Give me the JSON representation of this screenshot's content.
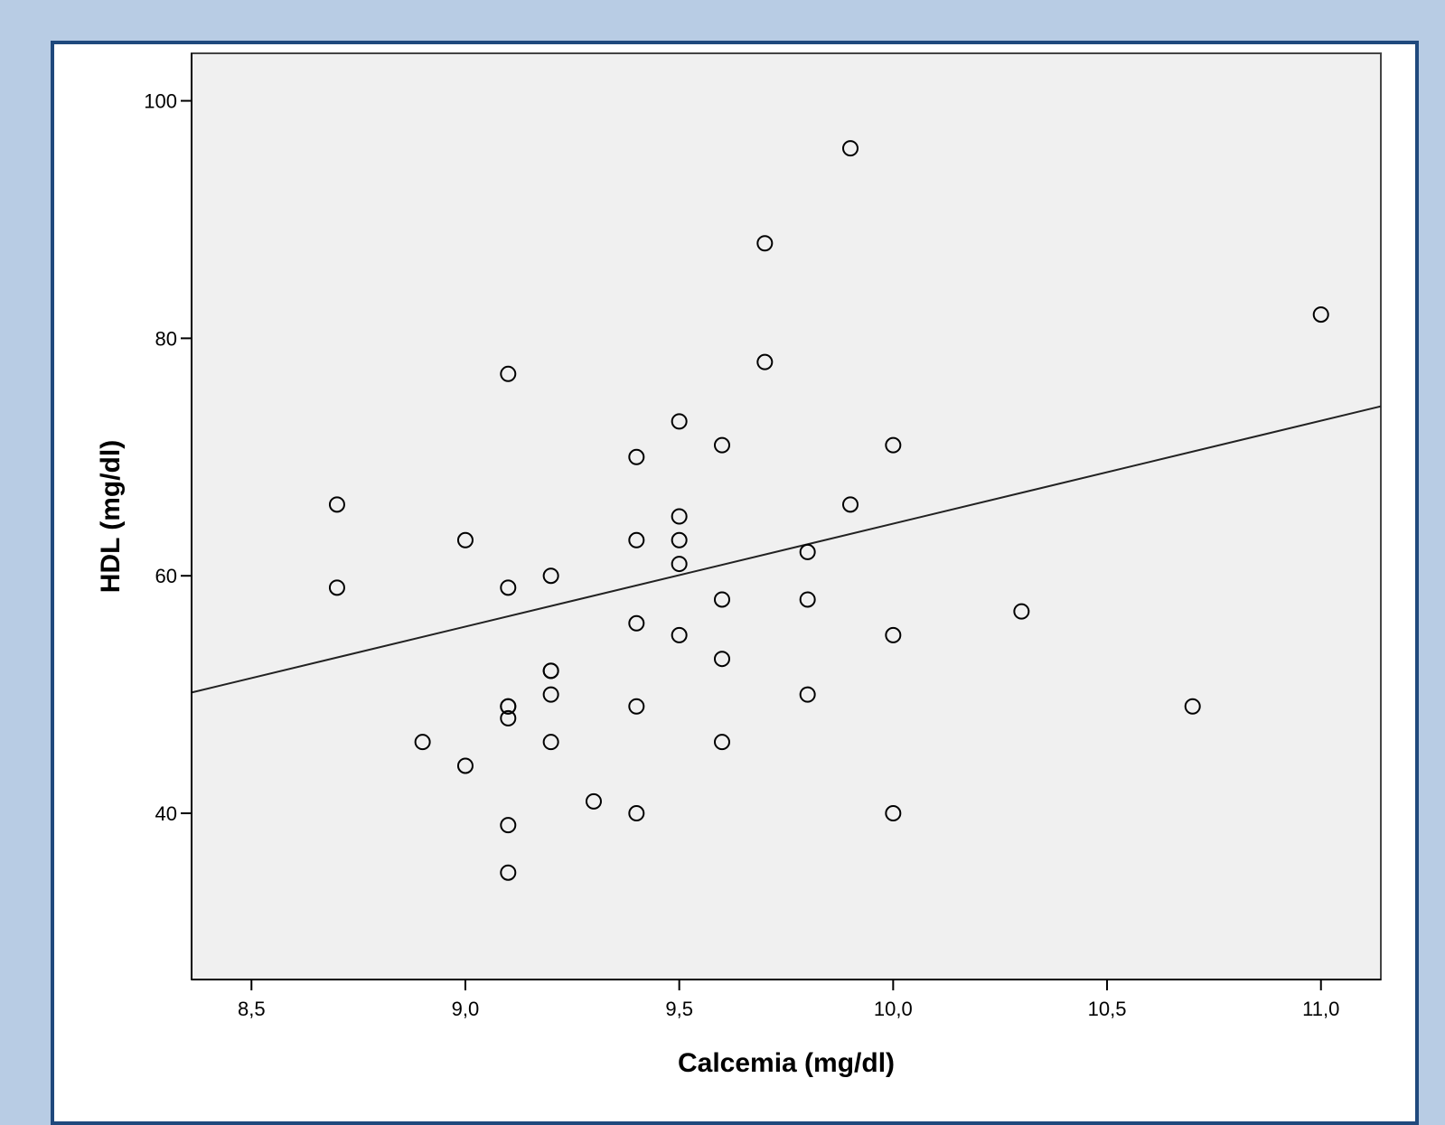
{
  "chart_data": {
    "type": "scatter",
    "title": "",
    "xlabel": "Calcemia (mg/dl)",
    "ylabel": "HDL (mg/dl)",
    "xlim": [
      8.36,
      11.14
    ],
    "ylim": [
      26,
      104
    ],
    "xticks": [
      8.5,
      9.0,
      9.5,
      10.0,
      10.5,
      11.0
    ],
    "xtick_labels": [
      "8,5",
      "9,0",
      "9,5",
      "10,0",
      "10,5",
      "11,0"
    ],
    "yticks": [
      40,
      60,
      80,
      100
    ],
    "ytick_labels": [
      "40",
      "60",
      "80",
      "100"
    ],
    "grid": false,
    "fit_line": {
      "type": "linear",
      "intercept": -22.31,
      "slope": 8.67
    },
    "points": [
      [
        8.7,
        66
      ],
      [
        8.7,
        59
      ],
      [
        8.9,
        46
      ],
      [
        9.0,
        63
      ],
      [
        9.0,
        44
      ],
      [
        9.1,
        77
      ],
      [
        9.1,
        59
      ],
      [
        9.1,
        49
      ],
      [
        9.1,
        49
      ],
      [
        9.1,
        48
      ],
      [
        9.1,
        39
      ],
      [
        9.1,
        35
      ],
      [
        9.2,
        60
      ],
      [
        9.2,
        52
      ],
      [
        9.2,
        52
      ],
      [
        9.2,
        50
      ],
      [
        9.2,
        46
      ],
      [
        9.3,
        41
      ],
      [
        9.4,
        70
      ],
      [
        9.4,
        63
      ],
      [
        9.4,
        56
      ],
      [
        9.4,
        49
      ],
      [
        9.4,
        40
      ],
      [
        9.5,
        73
      ],
      [
        9.5,
        65
      ],
      [
        9.5,
        63
      ],
      [
        9.5,
        61
      ],
      [
        9.5,
        55
      ],
      [
        9.6,
        71
      ],
      [
        9.6,
        58
      ],
      [
        9.6,
        53
      ],
      [
        9.6,
        46
      ],
      [
        9.7,
        88
      ],
      [
        9.7,
        78
      ],
      [
        9.8,
        62
      ],
      [
        9.8,
        58
      ],
      [
        9.8,
        50
      ],
      [
        9.9,
        96
      ],
      [
        9.9,
        66
      ],
      [
        10.0,
        71
      ],
      [
        10.0,
        55
      ],
      [
        10.0,
        40
      ],
      [
        10.3,
        57
      ],
      [
        10.7,
        49
      ],
      [
        11.0,
        82
      ]
    ],
    "colors": {
      "page_background": "#b8cce4",
      "frame_border": "#1f497d",
      "plot_background": "#f0f0f0",
      "marker": "#000000"
    }
  }
}
